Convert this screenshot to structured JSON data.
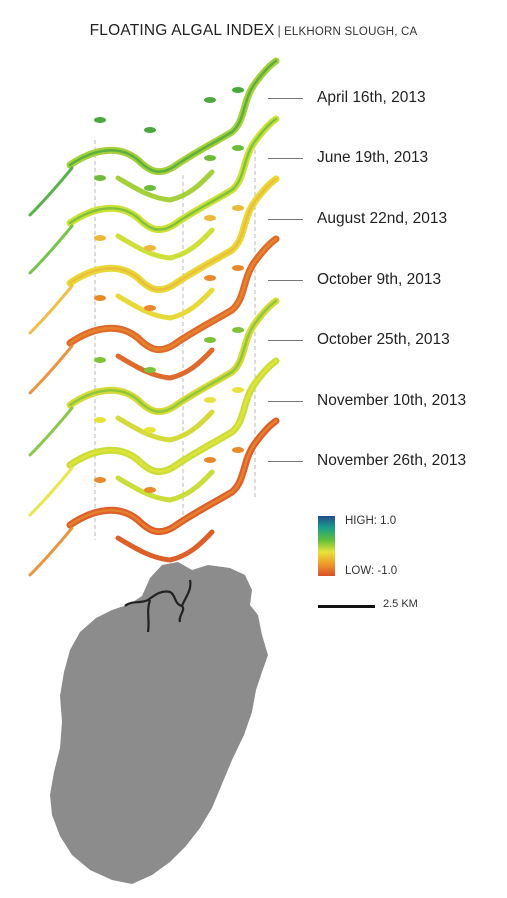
{
  "title": {
    "main": "FLOATING ALGAL INDEX",
    "separator": "|",
    "location": "ELKHORN SLOUGH, CA"
  },
  "dates": [
    "April 16th, 2013",
    "June 19th, 2013",
    "August 22nd, 2013",
    "October 9th, 2013",
    "October 25th, 2013",
    "November 10th, 2013",
    "November 26th, 2013"
  ],
  "legend": {
    "high": "HIGH: 1.0",
    "low": "LOW: -1.0",
    "colors": [
      "#1f4e8c",
      "#1aa08a",
      "#5fbf3a",
      "#e6e33a",
      "#ee9a2a",
      "#d9502a"
    ]
  },
  "scale": {
    "label": "2.5 KM"
  },
  "layers": [
    {
      "name": "April 16th, 2013",
      "main": "#a6cf3c",
      "accent": "#4aa83c"
    },
    {
      "name": "June 19th, 2013",
      "main": "#cde03a",
      "accent": "#6dbb3a"
    },
    {
      "name": "August 22nd, 2013",
      "main": "#e8d93a",
      "accent": "#ecb83a"
    },
    {
      "name": "October 9th, 2013",
      "main": "#de6a2c",
      "accent": "#e88a2c"
    },
    {
      "name": "October 25th, 2013",
      "main": "#d4da3a",
      "accent": "#7fc23a"
    },
    {
      "name": "November 10th, 2013",
      "main": "#c9de3a",
      "accent": "#e6e33a"
    },
    {
      "name": "November 26th, 2013",
      "main": "#dd5f2a",
      "accent": "#e88a2c"
    }
  ],
  "basemap": {
    "fill": "#8c8c8c",
    "slough": "#222222"
  }
}
